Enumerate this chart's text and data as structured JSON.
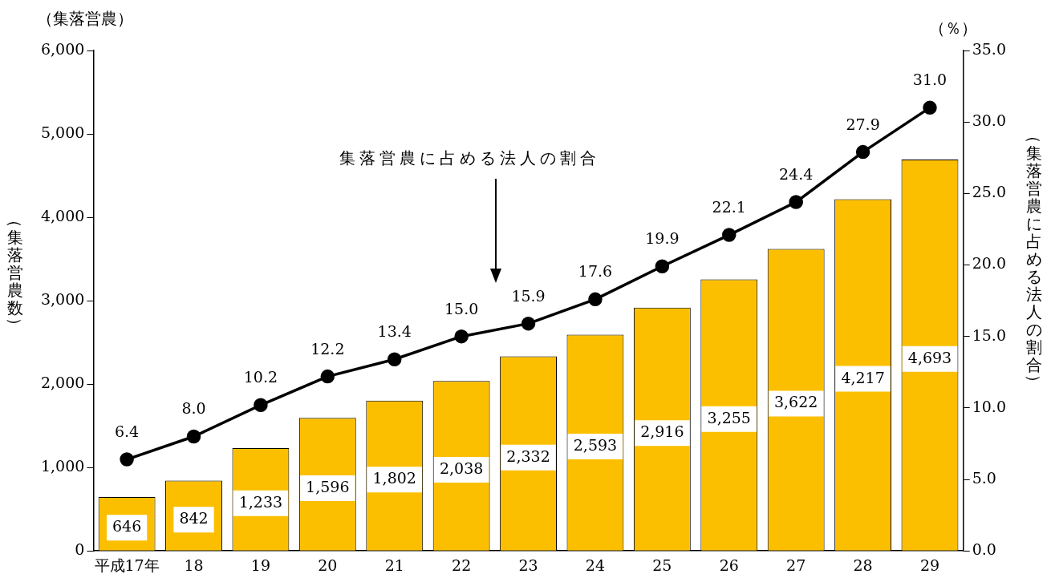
{
  "chart_data": {
    "type": "bar",
    "categories": [
      "平成17年",
      "18",
      "19",
      "20",
      "21",
      "22",
      "23",
      "24",
      "25",
      "26",
      "27",
      "28",
      "29"
    ],
    "series": [
      {
        "color": "#fcbf00",
        "values": [
          646,
          842,
          1233,
          1596,
          1802,
          2038,
          2332,
          2593,
          2916,
          3255,
          3622,
          4217,
          4693
        ],
        "value_labels": [
          "646",
          "842",
          "1,233",
          "1,596",
          "1,802",
          "2,038",
          "2,332",
          "2,593",
          "2,916",
          "3,255",
          "3,622",
          "4,217",
          "4,693"
        ]
      },
      {
        "type": "line",
        "axis": "y2",
        "color": "#000000",
        "values": [
          6.4,
          8.0,
          10.2,
          12.2,
          13.4,
          15.0,
          15.9,
          17.6,
          19.9,
          22.1,
          24.4,
          27.9,
          31.0
        ],
        "value_labels": [
          "6.4",
          "8.0",
          "10.2",
          "12.2",
          "13.4",
          "15.0",
          "15.9",
          "17.6",
          "19.9",
          "22.1",
          "24.4",
          "27.9",
          "31.0"
        ]
      }
    ],
    "ylabel": "（集落営農数）",
    "y2label": "（集落営農に占める法人の割合）",
    "ylim": [
      0,
      6000
    ],
    "yticks": [
      {
        "value": 0,
        "label": "0"
      },
      {
        "value": 1000,
        "label": "1,000"
      },
      {
        "value": 2000,
        "label": "2,000"
      },
      {
        "value": 3000,
        "label": "3,000"
      },
      {
        "value": 4000,
        "label": "4,000"
      },
      {
        "value": 5000,
        "label": "5,000"
      },
      {
        "value": 6000,
        "label": "6,000"
      }
    ],
    "y2lim": [
      0,
      35
    ],
    "y2ticks": [
      {
        "value": 0,
        "label": "0.0"
      },
      {
        "value": 5,
        "label": "5.0"
      },
      {
        "value": 10,
        "label": "10.0"
      },
      {
        "value": 15,
        "label": "15.0"
      },
      {
        "value": 20,
        "label": "20.0"
      },
      {
        "value": 25,
        "label": "25.0"
      },
      {
        "value": 30,
        "label": "30.0"
      },
      {
        "value": 35,
        "label": "35.0"
      }
    ],
    "annotations": [
      "（集落営農）",
      "（％）",
      "集落営農に占める法人の割合"
    ],
    "grid": false,
    "legend": false,
    "marker": "circle",
    "line_style": "solid"
  }
}
